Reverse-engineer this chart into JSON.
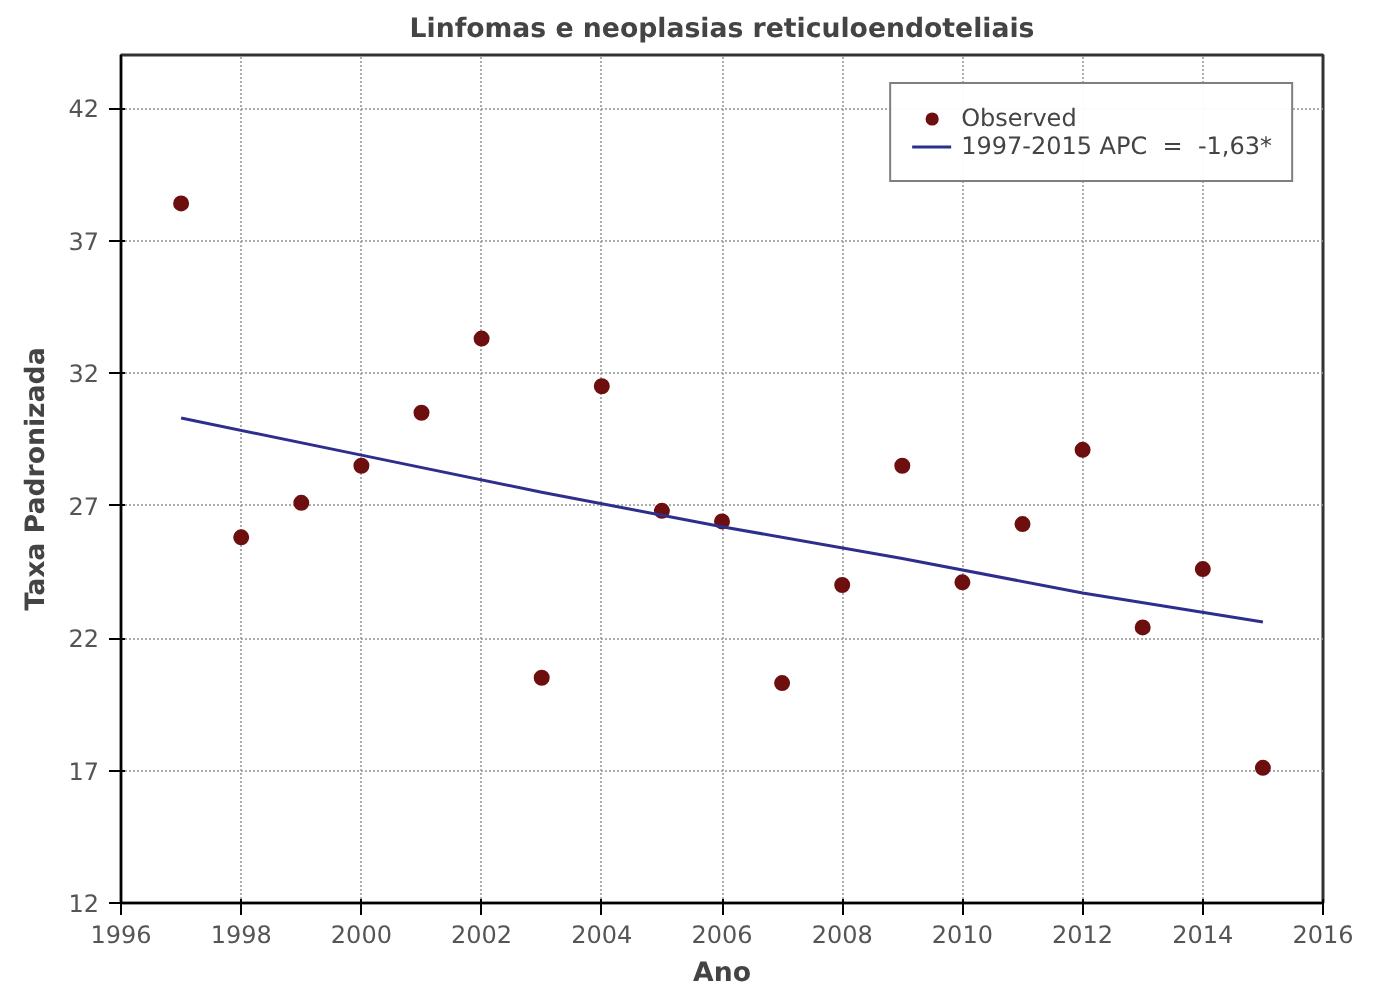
{
  "chart_data": {
    "type": "scatter",
    "title": "Linfomas e neoplasias reticuloendoteliais",
    "xlabel": "Ano",
    "ylabel": "Taxa Padronizada",
    "xlim": [
      1996,
      2016
    ],
    "xticks": [
      1996,
      1998,
      2000,
      2002,
      2004,
      2006,
      2008,
      2010,
      2012,
      2014,
      2016
    ],
    "ylim": [
      12,
      44
    ],
    "yticks": [
      12,
      17,
      22,
      27,
      32,
      37,
      42
    ],
    "grid": true,
    "legend": "top right",
    "series": [
      {
        "name": "Observed",
        "marker": "circle",
        "color": "#6e0f0f",
        "x": [
          1997,
          1998,
          1999,
          2000,
          2001,
          2002,
          2003,
          2004,
          2005,
          2006,
          2007,
          2008,
          2009,
          2010,
          2011,
          2012,
          2013,
          2014,
          2015
        ],
        "values": [
          38.4,
          25.8,
          27.1,
          28.5,
          30.5,
          33.3,
          20.5,
          31.5,
          26.8,
          26.4,
          20.3,
          24.0,
          28.5,
          24.1,
          26.3,
          29.1,
          22.4,
          24.6,
          17.1
        ]
      },
      {
        "name": "1997-2015 APC  =  -1,63*",
        "type": "line",
        "line_style": "solid",
        "color": "#2e2e8c",
        "x": [
          1997,
          2000,
          2003,
          2006,
          2009,
          2012,
          2015
        ],
        "values": [
          30.3,
          28.9,
          27.5,
          26.2,
          25.0,
          23.7,
          22.6
        ]
      }
    ]
  }
}
